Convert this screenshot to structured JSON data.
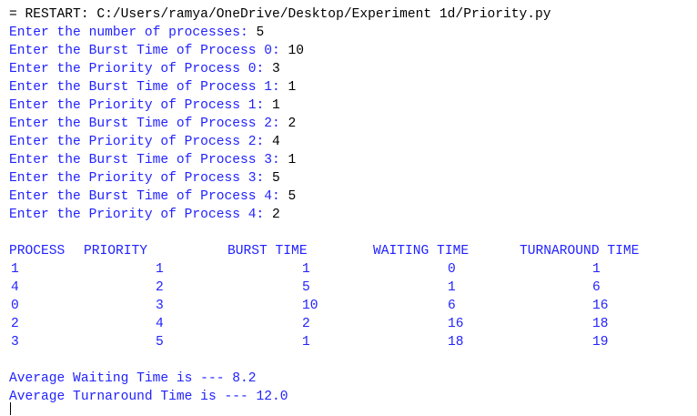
{
  "colors": {
    "output": "#2222ff",
    "input": "#000000",
    "background": "#ffffff"
  },
  "restart_line": "= RESTART: C:/Users/ramya/OneDrive/Desktop/Experiment 1d/Priority.py",
  "prompts": [
    {
      "text": "Enter the number of processes: ",
      "value": "5"
    },
    {
      "text": "Enter the Burst Time of Process 0: ",
      "value": "10"
    },
    {
      "text": "Enter the Priority of Process 0: ",
      "value": "3"
    },
    {
      "text": "Enter the Burst Time of Process 1: ",
      "value": "1"
    },
    {
      "text": "Enter the Priority of Process 1: ",
      "value": "1"
    },
    {
      "text": "Enter the Burst Time of Process 2: ",
      "value": "2"
    },
    {
      "text": "Enter the Priority of Process 2: ",
      "value": "4"
    },
    {
      "text": "Enter the Burst Time of Process 3: ",
      "value": "1"
    },
    {
      "text": "Enter the Priority of Process 3: ",
      "value": "5"
    },
    {
      "text": "Enter the Burst Time of Process 4: ",
      "value": "5"
    },
    {
      "text": "Enter the Priority of Process 4: ",
      "value": "2"
    }
  ],
  "table": {
    "headers": [
      "PROCESS",
      "PRIORITY",
      "BURST TIME",
      "WAITING TIME",
      "TURNAROUND TIME"
    ],
    "rows": [
      [
        "1",
        "1",
        "1",
        "0",
        "1"
      ],
      [
        "4",
        "2",
        "5",
        "1",
        "6"
      ],
      [
        "0",
        "3",
        "10",
        "6",
        "16"
      ],
      [
        "2",
        "4",
        "2",
        "16",
        "18"
      ],
      [
        "3",
        "5",
        "1",
        "18",
        "19"
      ]
    ]
  },
  "summary": {
    "avg_waiting": "Average Waiting Time is --- 8.2",
    "avg_turnaround": "Average Turnaround Time is --- 12.0"
  }
}
